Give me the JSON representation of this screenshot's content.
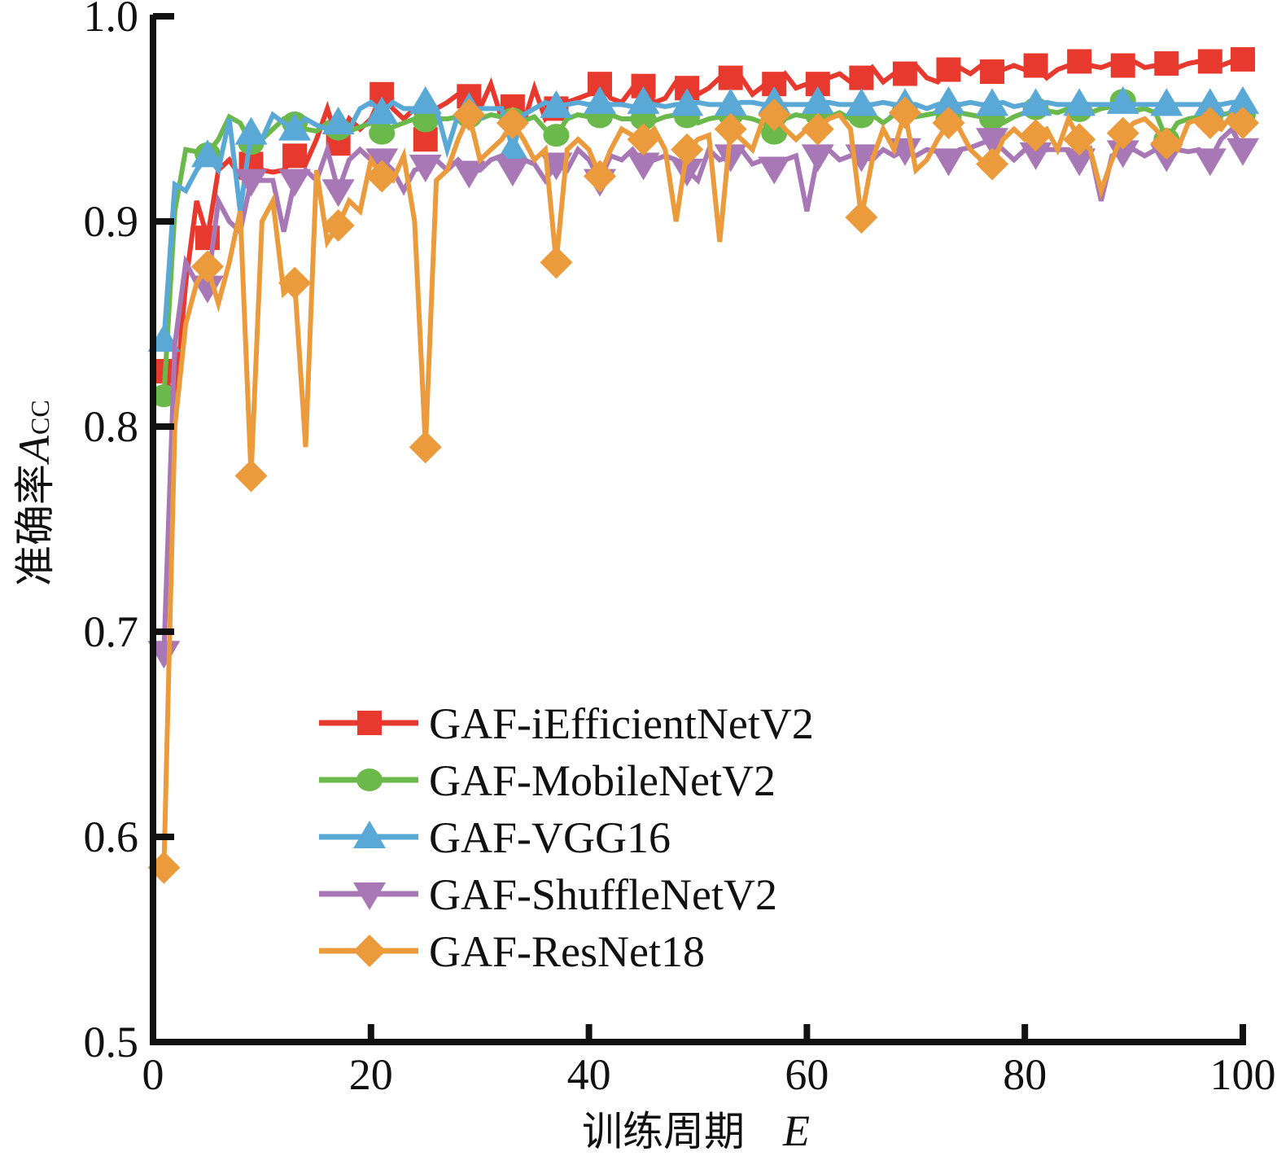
{
  "chart_data": {
    "type": "line",
    "title": "",
    "xlabel": "训练周期E",
    "xlabel_text": "训练周期",
    "xlabel_var": "E",
    "ylabel": "准确率A_CC",
    "ylabel_text": "准确率",
    "ylabel_var": "A",
    "ylabel_sub": "CC",
    "xlim": [
      0,
      100
    ],
    "ylim": [
      0.5,
      1.0
    ],
    "xticks": [
      0,
      20,
      40,
      60,
      80,
      100
    ],
    "xtick_labels": [
      "0",
      "20",
      "40",
      "60",
      "80",
      "100"
    ],
    "yticks": [
      0.5,
      0.6,
      0.7,
      0.8,
      0.9,
      1.0
    ],
    "ytick_labels": [
      "0.5",
      "0.6",
      "0.7",
      "0.8",
      "0.9",
      "1.0"
    ],
    "grid": false,
    "legend_position": "lower-center",
    "marker_epochs": [
      1,
      5,
      9,
      13,
      17,
      21,
      25,
      29,
      33,
      37,
      41,
      45,
      49,
      53,
      57,
      61,
      65,
      69,
      73,
      77,
      81,
      85,
      89,
      93,
      97,
      100
    ],
    "x": [
      1,
      2,
      3,
      4,
      5,
      6,
      7,
      8,
      9,
      10,
      11,
      12,
      13,
      14,
      15,
      16,
      17,
      18,
      19,
      20,
      21,
      22,
      23,
      24,
      25,
      26,
      27,
      28,
      29,
      30,
      31,
      32,
      33,
      34,
      35,
      36,
      37,
      38,
      39,
      40,
      41,
      42,
      43,
      44,
      45,
      46,
      47,
      48,
      49,
      50,
      51,
      52,
      53,
      54,
      55,
      56,
      57,
      58,
      59,
      60,
      61,
      62,
      63,
      64,
      65,
      66,
      67,
      68,
      69,
      70,
      71,
      72,
      73,
      74,
      75,
      76,
      77,
      78,
      79,
      80,
      81,
      82,
      83,
      84,
      85,
      86,
      87,
      88,
      89,
      90,
      91,
      92,
      93,
      94,
      95,
      96,
      97,
      98,
      99,
      100
    ],
    "series": [
      {
        "name": "GAF-iEfficientNetV2",
        "color": "#e8392f",
        "marker": "square",
        "values": [
          0.827,
          0.81,
          0.87,
          0.91,
          0.892,
          0.925,
          0.93,
          0.922,
          0.928,
          0.925,
          0.924,
          0.925,
          0.932,
          0.928,
          0.94,
          0.955,
          0.938,
          0.95,
          0.945,
          0.95,
          0.962,
          0.955,
          0.95,
          0.955,
          0.94,
          0.955,
          0.958,
          0.962,
          0.961,
          0.955,
          0.967,
          0.95,
          0.956,
          0.948,
          0.965,
          0.95,
          0.955,
          0.958,
          0.96,
          0.962,
          0.967,
          0.96,
          0.958,
          0.965,
          0.966,
          0.958,
          0.96,
          0.968,
          0.965,
          0.962,
          0.965,
          0.97,
          0.97,
          0.97,
          0.962,
          0.966,
          0.967,
          0.972,
          0.965,
          0.967,
          0.967,
          0.97,
          0.972,
          0.968,
          0.97,
          0.975,
          0.968,
          0.972,
          0.972,
          0.976,
          0.97,
          0.968,
          0.974,
          0.975,
          0.972,
          0.976,
          0.973,
          0.974,
          0.976,
          0.974,
          0.976,
          0.97,
          0.974,
          0.976,
          0.978,
          0.976,
          0.975,
          0.977,
          0.976,
          0.978,
          0.975,
          0.976,
          0.977,
          0.975,
          0.977,
          0.978,
          0.978,
          0.976,
          0.978,
          0.979
        ]
      },
      {
        "name": "GAF-MobileNetV2",
        "color": "#6ab94a",
        "marker": "circle",
        "values": [
          0.815,
          0.905,
          0.935,
          0.934,
          0.933,
          0.94,
          0.951,
          0.948,
          0.938,
          0.94,
          0.945,
          0.95,
          0.948,
          0.945,
          0.944,
          0.948,
          0.945,
          0.944,
          0.946,
          0.948,
          0.943,
          0.946,
          0.948,
          0.95,
          0.949,
          0.95,
          0.95,
          0.951,
          0.951,
          0.95,
          0.952,
          0.951,
          0.95,
          0.949,
          0.951,
          0.945,
          0.942,
          0.95,
          0.952,
          0.951,
          0.951,
          0.952,
          0.95,
          0.95,
          0.95,
          0.949,
          0.951,
          0.952,
          0.951,
          0.948,
          0.95,
          0.951,
          0.952,
          0.951,
          0.95,
          0.948,
          0.943,
          0.95,
          0.952,
          0.951,
          0.952,
          0.951,
          0.953,
          0.95,
          0.951,
          0.952,
          0.948,
          0.952,
          0.954,
          0.951,
          0.952,
          0.953,
          0.95,
          0.953,
          0.952,
          0.951,
          0.95,
          0.948,
          0.951,
          0.953,
          0.955,
          0.954,
          0.953,
          0.955,
          0.954,
          0.953,
          0.955,
          0.956,
          0.959,
          0.954,
          0.955,
          0.953,
          0.94,
          0.948,
          0.95,
          0.951,
          0.951,
          0.952,
          0.953,
          0.952
        ]
      },
      {
        "name": "GAF-VGG16",
        "color": "#5aa8d6",
        "marker": "triangle-up",
        "values": [
          0.842,
          0.918,
          0.915,
          0.925,
          0.932,
          0.925,
          0.95,
          0.905,
          0.943,
          0.94,
          0.952,
          0.948,
          0.945,
          0.95,
          0.947,
          0.945,
          0.948,
          0.945,
          0.955,
          0.958,
          0.953,
          0.958,
          0.955,
          0.955,
          0.958,
          0.955,
          0.935,
          0.952,
          0.955,
          0.955,
          0.955,
          0.955,
          0.935,
          0.952,
          0.955,
          0.958,
          0.956,
          0.957,
          0.958,
          0.957,
          0.958,
          0.957,
          0.957,
          0.956,
          0.958,
          0.957,
          0.956,
          0.957,
          0.957,
          0.958,
          0.957,
          0.957,
          0.957,
          0.958,
          0.958,
          0.957,
          0.958,
          0.957,
          0.957,
          0.957,
          0.958,
          0.958,
          0.957,
          0.957,
          0.957,
          0.957,
          0.958,
          0.957,
          0.957,
          0.957,
          0.955,
          0.957,
          0.958,
          0.957,
          0.958,
          0.957,
          0.957,
          0.958,
          0.956,
          0.957,
          0.957,
          0.958,
          0.957,
          0.957,
          0.957,
          0.957,
          0.957,
          0.957,
          0.958,
          0.957,
          0.957,
          0.957,
          0.957,
          0.957,
          0.957,
          0.957,
          0.957,
          0.957,
          0.958,
          0.958
        ]
      },
      {
        "name": "GAF-ShuffleNetV2",
        "color": "#a877b5",
        "marker": "triangle-down",
        "values": [
          0.69,
          0.84,
          0.88,
          0.87,
          0.868,
          0.91,
          0.9,
          0.895,
          0.92,
          0.92,
          0.92,
          0.895,
          0.92,
          0.925,
          0.92,
          0.935,
          0.915,
          0.93,
          0.935,
          0.93,
          0.93,
          0.925,
          0.915,
          0.925,
          0.927,
          0.93,
          0.925,
          0.93,
          0.924,
          0.925,
          0.93,
          0.932,
          0.925,
          0.93,
          0.928,
          0.92,
          0.928,
          0.925,
          0.935,
          0.93,
          0.92,
          0.932,
          0.93,
          0.935,
          0.928,
          0.93,
          0.932,
          0.93,
          0.925,
          0.92,
          0.935,
          0.93,
          0.932,
          0.935,
          0.928,
          0.93,
          0.926,
          0.93,
          0.932,
          0.905,
          0.932,
          0.935,
          0.93,
          0.932,
          0.932,
          0.93,
          0.935,
          0.932,
          0.935,
          0.932,
          0.935,
          0.934,
          0.93,
          0.935,
          0.936,
          0.938,
          0.94,
          0.935,
          0.93,
          0.935,
          0.933,
          0.935,
          0.935,
          0.935,
          0.93,
          0.935,
          0.91,
          0.932,
          0.934,
          0.935,
          0.932,
          0.935,
          0.932,
          0.935,
          0.934,
          0.935,
          0.93,
          0.94,
          0.945,
          0.935
        ]
      },
      {
        "name": "GAF-ResNet18",
        "color": "#eb9a3c",
        "marker": "diamond",
        "values": [
          0.585,
          0.8,
          0.85,
          0.87,
          0.878,
          0.86,
          0.88,
          0.905,
          0.776,
          0.9,
          0.91,
          0.865,
          0.87,
          0.79,
          0.925,
          0.89,
          0.898,
          0.91,
          0.905,
          0.93,
          0.922,
          0.92,
          0.932,
          0.9,
          0.79,
          0.92,
          0.925,
          0.94,
          0.952,
          0.93,
          0.935,
          0.94,
          0.948,
          0.94,
          0.93,
          0.935,
          0.88,
          0.935,
          0.94,
          0.935,
          0.922,
          0.935,
          0.945,
          0.942,
          0.94,
          0.945,
          0.935,
          0.9,
          0.935,
          0.94,
          0.942,
          0.89,
          0.945,
          0.94,
          0.935,
          0.95,
          0.952,
          0.945,
          0.94,
          0.945,
          0.945,
          0.95,
          0.952,
          0.945,
          0.902,
          0.93,
          0.945,
          0.935,
          0.953,
          0.925,
          0.93,
          0.94,
          0.948,
          0.945,
          0.935,
          0.93,
          0.928,
          0.94,
          0.945,
          0.94,
          0.942,
          0.945,
          0.935,
          0.95,
          0.94,
          0.935,
          0.915,
          0.93,
          0.943,
          0.948,
          0.95,
          0.945,
          0.938,
          0.935,
          0.948,
          0.95,
          0.948,
          0.945,
          0.952,
          0.948
        ]
      }
    ]
  }
}
